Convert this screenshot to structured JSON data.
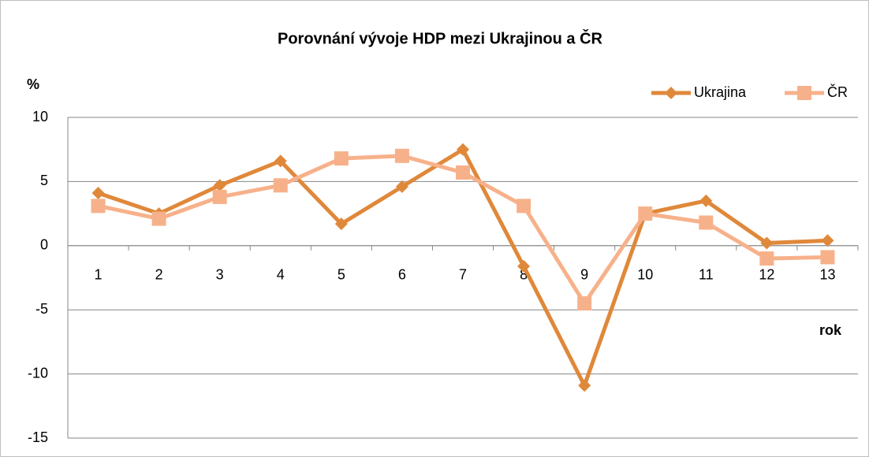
{
  "chart_data": {
    "type": "line",
    "title": "Porovnání vývoje HDP mezi Ukrajinou a ČR",
    "y_label": "%",
    "x_label": "rok",
    "categories": [
      "1",
      "2",
      "3",
      "4",
      "5",
      "6",
      "7",
      "8",
      "9",
      "10",
      "11",
      "12",
      "13"
    ],
    "series": [
      {
        "name": "Ukrajina",
        "color": "#e0883a",
        "marker": "diamond",
        "values": [
          4.1,
          2.5,
          4.7,
          6.6,
          1.7,
          4.6,
          7.5,
          -1.6,
          -10.9,
          2.5,
          3.5,
          0.2,
          0.4
        ]
      },
      {
        "name": "ČR",
        "color": "#f7b18a",
        "marker": "square",
        "values": [
          3.1,
          2.1,
          3.8,
          4.7,
          6.8,
          7.0,
          5.7,
          3.1,
          -4.5,
          2.5,
          1.8,
          -1.0,
          -0.9
        ]
      }
    ],
    "ylim": [
      -15,
      10
    ],
    "yticks": [
      -15,
      -10,
      -5,
      0,
      5,
      10
    ],
    "grid": true,
    "legend": "top-right"
  }
}
